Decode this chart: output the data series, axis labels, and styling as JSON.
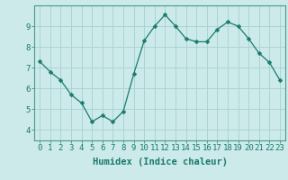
{
  "x": [
    0,
    1,
    2,
    3,
    4,
    5,
    6,
    7,
    8,
    9,
    10,
    11,
    12,
    13,
    14,
    15,
    16,
    17,
    18,
    19,
    20,
    21,
    22,
    23
  ],
  "y": [
    7.3,
    6.8,
    6.4,
    5.7,
    5.3,
    4.4,
    4.7,
    4.4,
    4.9,
    6.7,
    8.3,
    9.0,
    9.55,
    9.0,
    8.4,
    8.25,
    8.25,
    8.85,
    9.2,
    9.0,
    8.4,
    7.7,
    7.25,
    6.4
  ],
  "line_color": "#1a7a6e",
  "marker": "D",
  "marker_size": 2.5,
  "bg_color": "#cceaea",
  "grid_color": "#aad4d4",
  "xlabel": "Humidex (Indice chaleur)",
  "ylim": [
    3.5,
    10.0
  ],
  "xlim": [
    -0.5,
    23.5
  ],
  "yticks": [
    4,
    5,
    6,
    7,
    8,
    9
  ],
  "xtick_labels": [
    "0",
    "1",
    "2",
    "3",
    "4",
    "5",
    "6",
    "7",
    "8",
    "9",
    "10",
    "11",
    "12",
    "13",
    "14",
    "15",
    "16",
    "17",
    "18",
    "19",
    "20",
    "21",
    "22",
    "23"
  ],
  "xlabel_fontsize": 7.5,
  "tick_fontsize": 6.5,
  "axis_color": "#1a7a6e",
  "spine_color": "#4a9a8a"
}
